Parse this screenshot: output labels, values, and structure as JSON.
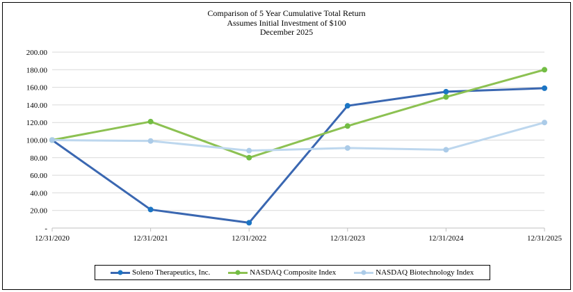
{
  "title": {
    "line1": "Comparison of 5 Year Cumulative Total Return",
    "line2": "Assumes Initial Investment of $100",
    "line3": "December 2025"
  },
  "chart_data": {
    "type": "line",
    "categories": [
      "12/31/2020",
      "12/31/2021",
      "12/31/2022",
      "12/31/2023",
      "12/31/2024",
      "12/31/2025"
    ],
    "series": [
      {
        "name": "Soleno Therapeutics, Inc.",
        "values": [
          100,
          21,
          6,
          139,
          155,
          159
        ],
        "line_color": "#3A67B1",
        "marker_color": "#1B75C4"
      },
      {
        "name": "NASDAQ Composite Index",
        "values": [
          100,
          121,
          80,
          116,
          149,
          180
        ],
        "line_color": "#8CC152",
        "marker_color": "#72BD44"
      },
      {
        "name": "NASDAQ Biotechnology Index",
        "values": [
          100,
          99,
          88,
          91,
          89,
          120
        ],
        "line_color": "#BDD7EE",
        "marker_color": "#ABCBE8"
      }
    ],
    "ylim": [
      0,
      200
    ],
    "y_tick_values": [
      200,
      180,
      160,
      140,
      120,
      100,
      80,
      60,
      40,
      20,
      0
    ],
    "y_tick_labels": [
      "200.00",
      "180.00",
      "160.00",
      "140.00",
      "120.00",
      "100.00",
      "80.00",
      "60.00",
      "40.00",
      "20.00",
      "-"
    ],
    "grid": true,
    "legend_position": "bottom",
    "gridline_color": "#D9D9D9",
    "axis_color": "#BFBFBF",
    "text_color": "#000000"
  }
}
